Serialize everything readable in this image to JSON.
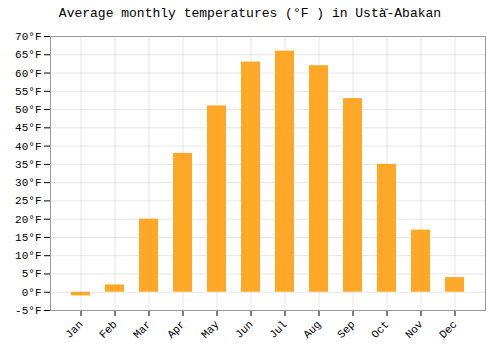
{
  "chart_data": {
    "type": "bar",
    "title": "Average monthly temperatures (°F ) in Ustà̆-Abakan",
    "categories": [
      "Jan",
      "Feb",
      "Mar",
      "Apr",
      "May",
      "Jun",
      "Jul",
      "Aug",
      "Sep",
      "Oct",
      "Nov",
      "Dec"
    ],
    "values": [
      -1,
      2,
      20,
      38,
      51,
      63,
      66,
      62,
      53,
      35,
      17,
      4
    ],
    "color": "#FFA726",
    "ylim": [
      -5,
      70
    ],
    "yticks": [
      {
        "value": -5,
        "label": "-5°F"
      },
      {
        "value": 0,
        "label": "0°F"
      },
      {
        "value": 5,
        "label": "5°F"
      },
      {
        "value": 10,
        "label": "10°F"
      },
      {
        "value": 15,
        "label": "15°F"
      },
      {
        "value": 20,
        "label": "20°F"
      },
      {
        "value": 25,
        "label": "25°F"
      },
      {
        "value": 30,
        "label": "30°F"
      },
      {
        "value": 35,
        "label": "35°F"
      },
      {
        "value": 40,
        "label": "40°F"
      },
      {
        "value": 45,
        "label": "45°F"
      },
      {
        "value": 50,
        "label": "50°F"
      },
      {
        "value": 55,
        "label": "55°F"
      },
      {
        "value": 60,
        "label": "60°F"
      },
      {
        "value": 65,
        "label": "65°F"
      },
      {
        "value": 70,
        "label": "70°F"
      }
    ],
    "grid": true
  }
}
